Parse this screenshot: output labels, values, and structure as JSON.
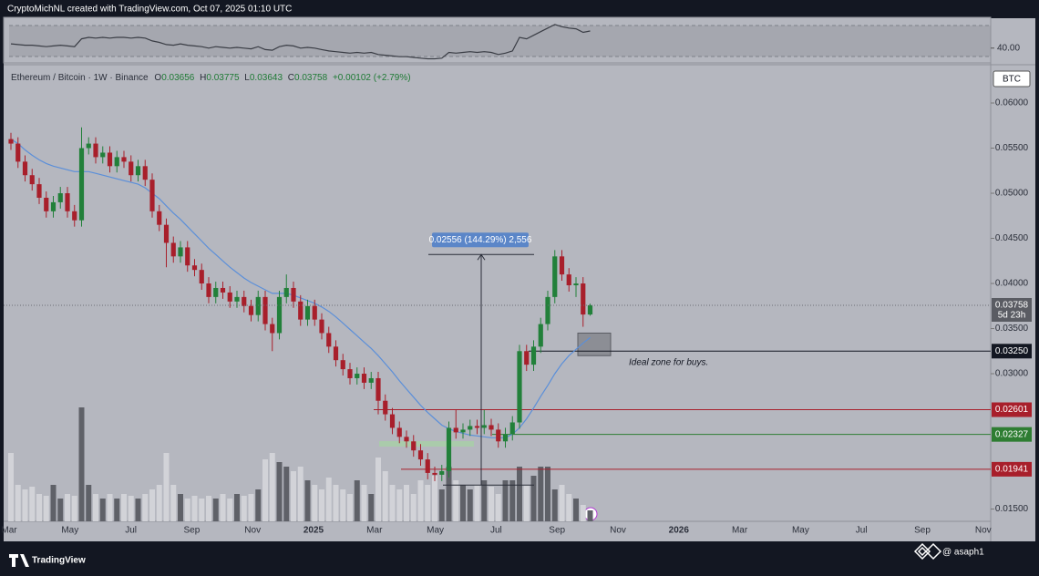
{
  "header": {
    "credit": "CryptoMichNL created with TradingView.com, Oct 07, 2025 01:10 UTC",
    "symbol": "Ethereum / Bitcoin · 1W · Binance",
    "ohlc": [
      {
        "label": "O",
        "value": "0.03656"
      },
      {
        "label": "H",
        "value": "0.03775"
      },
      {
        "label": "L",
        "value": "0.03643"
      },
      {
        "label": "C",
        "value": "0.03758"
      }
    ],
    "change": "+0.00102 (+2.79%)"
  },
  "chart_data": [
    {
      "type": "line",
      "color": "#3a3d45",
      "values": [
        46,
        45,
        44,
        44,
        43,
        42,
        43,
        44,
        43,
        42,
        53,
        55,
        54,
        55,
        54,
        55,
        55,
        54,
        55,
        54,
        50,
        48,
        45,
        44,
        46,
        44,
        43,
        42,
        40,
        42,
        41,
        40,
        41,
        40,
        39,
        42,
        38,
        37,
        42,
        44,
        43,
        40,
        41,
        40,
        38,
        36,
        35,
        34,
        33,
        34,
        33,
        34,
        31,
        30,
        29,
        28,
        28,
        27,
        26,
        25,
        25,
        26,
        34,
        33,
        34,
        35,
        34,
        35,
        34,
        31,
        33,
        36,
        55,
        53,
        58,
        63,
        68,
        73,
        70,
        68,
        67,
        62,
        64
      ],
      "ylim": [
        20.6,
        81.8
      ],
      "yticks": [
        {
          "value": 40,
          "label": "40.00"
        }
      ]
    },
    {
      "type": "candlestick",
      "currency": "BTC",
      "up_color": "#22803a",
      "down_color": "#a81f2b",
      "open": [
        0.056,
        0.0555,
        0.0535,
        0.052,
        0.051,
        0.0495,
        0.048,
        0.049,
        0.05,
        0.048,
        0.047,
        0.055,
        0.0555,
        0.054,
        0.0545,
        0.053,
        0.054,
        0.0535,
        0.052,
        0.053,
        0.0515,
        0.048,
        0.0465,
        0.0445,
        0.043,
        0.044,
        0.042,
        0.0415,
        0.04,
        0.0385,
        0.0395,
        0.039,
        0.038,
        0.0385,
        0.0375,
        0.0365,
        0.0385,
        0.0355,
        0.0345,
        0.0385,
        0.0395,
        0.038,
        0.036,
        0.0375,
        0.036,
        0.0345,
        0.033,
        0.0315,
        0.0305,
        0.0295,
        0.03,
        0.029,
        0.0295,
        0.027,
        0.0255,
        0.024,
        0.023,
        0.0225,
        0.0215,
        0.0205,
        0.019,
        0.0188,
        0.0192,
        0.024,
        0.0235,
        0.0238,
        0.0242,
        0.024,
        0.0243,
        0.0238,
        0.0225,
        0.0233,
        0.0246,
        0.0325,
        0.031,
        0.033,
        0.0355,
        0.0385,
        0.043,
        0.041,
        0.0398,
        0.04,
        0.03656
      ],
      "high": [
        0.0567,
        0.0562,
        0.0542,
        0.0527,
        0.0517,
        0.0502,
        0.0497,
        0.0507,
        0.0507,
        0.0487,
        0.0573,
        0.0562,
        0.0562,
        0.0552,
        0.0552,
        0.0547,
        0.0547,
        0.0542,
        0.0537,
        0.0537,
        0.0522,
        0.0487,
        0.0472,
        0.0452,
        0.0447,
        0.0447,
        0.0427,
        0.0422,
        0.0407,
        0.0402,
        0.0402,
        0.0397,
        0.0392,
        0.0392,
        0.0382,
        0.0392,
        0.0392,
        0.0362,
        0.0392,
        0.041,
        0.0402,
        0.0387,
        0.0382,
        0.0382,
        0.0367,
        0.0352,
        0.0337,
        0.0322,
        0.0312,
        0.0307,
        0.0307,
        0.0302,
        0.0302,
        0.0277,
        0.0262,
        0.0247,
        0.0237,
        0.0232,
        0.0222,
        0.0212,
        0.0197,
        0.0199,
        0.0247,
        0.026,
        0.0245,
        0.0249,
        0.0249,
        0.026,
        0.025,
        0.0245,
        0.024,
        0.0253,
        0.0332,
        0.0332,
        0.0337,
        0.0362,
        0.0392,
        0.0437,
        0.0437,
        0.0417,
        0.0407,
        0.0407,
        0.03775
      ],
      "low": [
        0.0548,
        0.0528,
        0.0513,
        0.0503,
        0.0488,
        0.0473,
        0.0473,
        0.0483,
        0.0473,
        0.0463,
        0.0463,
        0.0543,
        0.0533,
        0.0533,
        0.0523,
        0.0523,
        0.0528,
        0.0513,
        0.0513,
        0.0508,
        0.0473,
        0.0458,
        0.0418,
        0.0423,
        0.0423,
        0.0413,
        0.0408,
        0.0393,
        0.0378,
        0.0378,
        0.0383,
        0.0373,
        0.0373,
        0.0368,
        0.0358,
        0.0358,
        0.0348,
        0.0325,
        0.0338,
        0.0378,
        0.0373,
        0.0353,
        0.0353,
        0.0353,
        0.0338,
        0.0323,
        0.0308,
        0.0298,
        0.0288,
        0.0288,
        0.0283,
        0.0283,
        0.0255,
        0.0248,
        0.0233,
        0.0223,
        0.0218,
        0.0208,
        0.0198,
        0.0183,
        0.0181,
        0.0181,
        0.0185,
        0.0228,
        0.0228,
        0.0231,
        0.0233,
        0.0233,
        0.0231,
        0.0218,
        0.0218,
        0.0226,
        0.0239,
        0.0303,
        0.0303,
        0.0323,
        0.0348,
        0.0378,
        0.0403,
        0.0391,
        0.0385,
        0.0352,
        0.03643
      ],
      "close": [
        0.0555,
        0.0535,
        0.052,
        0.051,
        0.0495,
        0.048,
        0.049,
        0.05,
        0.048,
        0.047,
        0.055,
        0.0555,
        0.054,
        0.0545,
        0.053,
        0.054,
        0.0535,
        0.052,
        0.053,
        0.0515,
        0.048,
        0.0465,
        0.0445,
        0.043,
        0.044,
        0.042,
        0.0415,
        0.04,
        0.0385,
        0.0395,
        0.039,
        0.038,
        0.0385,
        0.0375,
        0.0365,
        0.0385,
        0.0355,
        0.0345,
        0.0385,
        0.0395,
        0.038,
        0.036,
        0.0375,
        0.036,
        0.0345,
        0.033,
        0.0315,
        0.0305,
        0.0295,
        0.03,
        0.029,
        0.0295,
        0.027,
        0.0255,
        0.024,
        0.023,
        0.0225,
        0.0215,
        0.0205,
        0.019,
        0.0188,
        0.0192,
        0.024,
        0.0235,
        0.0238,
        0.0242,
        0.024,
        0.0243,
        0.0238,
        0.0225,
        0.0233,
        0.0246,
        0.0325,
        0.031,
        0.033,
        0.0355,
        0.0385,
        0.043,
        0.041,
        0.0398,
        0.04,
        0.03656,
        0.03758
      ],
      "ma": {
        "color": "#5b8fd9",
        "values": [
          0.056,
          0.0555,
          0.0548,
          0.0542,
          0.0537,
          0.0533,
          0.053,
          0.0528,
          0.0526,
          0.0524,
          0.0524,
          0.0524,
          0.0522,
          0.052,
          0.0518,
          0.0516,
          0.0514,
          0.0512,
          0.051,
          0.0506,
          0.05,
          0.0494,
          0.0486,
          0.0478,
          0.0471,
          0.0463,
          0.0455,
          0.0447,
          0.0439,
          0.0432,
          0.0425,
          0.0418,
          0.0412,
          0.0406,
          0.0401,
          0.0397,
          0.0393,
          0.0389,
          0.0389,
          0.0389,
          0.0387,
          0.0384,
          0.0381,
          0.0378,
          0.0374,
          0.0369,
          0.0363,
          0.0356,
          0.0349,
          0.0342,
          0.0335,
          0.0328,
          0.032,
          0.0311,
          0.0302,
          0.0292,
          0.0283,
          0.0274,
          0.0265,
          0.0257,
          0.025,
          0.0243,
          0.0239,
          0.0236,
          0.0234,
          0.0232,
          0.0231,
          0.023,
          0.0229,
          0.0229,
          0.0229,
          0.0233,
          0.024,
          0.025,
          0.0262,
          0.0275,
          0.0287,
          0.03,
          0.0311,
          0.032,
          0.0327,
          0.0334,
          0.034
        ]
      },
      "volume": {
        "values": [
          75,
          40,
          35,
          38,
          30,
          28,
          40,
          25,
          30,
          28,
          125,
          40,
          30,
          25,
          30,
          25,
          30,
          28,
          25,
          30,
          35,
          40,
          75,
          40,
          30,
          25,
          28,
          25,
          28,
          25,
          30,
          25,
          30,
          28,
          30,
          35,
          68,
          75,
          65,
          60,
          55,
          60,
          45,
          40,
          35,
          48,
          40,
          35,
          30,
          45,
          40,
          30,
          70,
          55,
          40,
          35,
          40,
          30,
          45,
          40,
          50,
          35,
          60,
          45,
          40,
          35,
          40,
          45,
          38,
          30,
          45,
          45,
          60,
          40,
          50,
          60,
          60,
          35,
          40,
          30,
          25,
          18,
          12
        ]
      },
      "ylim": [
        0.01364,
        0.06384
      ],
      "yticks": [
        {
          "value": 0.06,
          "label": "0.06000"
        },
        {
          "value": 0.055,
          "label": "0.05500"
        },
        {
          "value": 0.05,
          "label": "0.05000"
        },
        {
          "value": 0.045,
          "label": "0.04500"
        },
        {
          "value": 0.04,
          "label": "0.04000"
        },
        {
          "value": 0.035,
          "label": "0.03500"
        },
        {
          "value": 0.03,
          "label": "0.03000"
        },
        {
          "value": 0.015,
          "label": "0.01500"
        }
      ],
      "xticks": [
        "Mar",
        "May",
        "Jul",
        "Sep",
        "Nov",
        "2025",
        "Mar",
        "May",
        "Jul",
        "Sep",
        "Nov",
        "2026",
        "Mar",
        "May",
        "Jul",
        "Sep",
        "Nov"
      ],
      "countdown": "5d 23h",
      "levels": [
        {
          "value": 0.0325,
          "label": "0.03250",
          "color": "#131722"
        },
        {
          "value": 0.02601,
          "color": "#a81f2b"
        },
        {
          "value": 0.02327,
          "color": "#2e7d32"
        },
        {
          "value": 0.01941,
          "color": "#a81f2b"
        }
      ],
      "measure": {
        "from": 0.01765,
        "to": 0.04321,
        "label": "0.02556 (144.29%) 2,556"
      },
      "buy_zone": [
        0.032,
        0.0345
      ],
      "annotation": "Ideal zone for buys."
    }
  ],
  "footer": {
    "brand": "TradingView",
    "handle": "@ asaph1"
  }
}
